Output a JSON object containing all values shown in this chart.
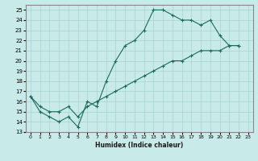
{
  "line1_x": [
    0,
    1,
    2,
    3,
    4,
    5,
    6,
    7,
    8,
    9,
    10,
    11,
    12,
    13,
    14,
    15,
    16,
    17,
    18,
    19,
    20,
    21,
    22
  ],
  "line1_y": [
    16.5,
    15.0,
    14.5,
    14.0,
    14.5,
    13.5,
    16.0,
    15.5,
    18.0,
    20.0,
    21.5,
    22.0,
    23.0,
    25.0,
    25.0,
    24.5,
    24.0,
    24.0,
    23.5,
    24.0,
    22.5,
    21.5,
    21.5
  ],
  "line2_x": [
    0,
    1,
    2,
    3,
    4,
    5,
    6,
    7,
    8,
    9,
    10,
    11,
    12,
    13,
    14,
    15,
    16,
    17,
    18,
    19,
    20,
    21,
    22
  ],
  "line2_y": [
    16.5,
    15.5,
    15.0,
    15.0,
    15.5,
    14.5,
    15.5,
    16.0,
    16.5,
    17.0,
    17.5,
    18.0,
    18.5,
    19.0,
    19.5,
    20.0,
    20.0,
    20.5,
    21.0,
    21.0,
    21.0,
    21.5,
    21.5
  ],
  "line_color": "#1a6b5a",
  "bg_color": "#c8eae8",
  "grid_color": "#a8d4d0",
  "xlabel": "Humidex (Indice chaleur)",
  "xlim": [
    -0.5,
    23.5
  ],
  "ylim": [
    13,
    25.5
  ],
  "yticks": [
    13,
    14,
    15,
    16,
    17,
    18,
    19,
    20,
    21,
    22,
    23,
    24,
    25
  ],
  "xticks": [
    0,
    1,
    2,
    3,
    4,
    5,
    6,
    7,
    8,
    9,
    10,
    11,
    12,
    13,
    14,
    15,
    16,
    17,
    18,
    19,
    20,
    21,
    22,
    23
  ]
}
